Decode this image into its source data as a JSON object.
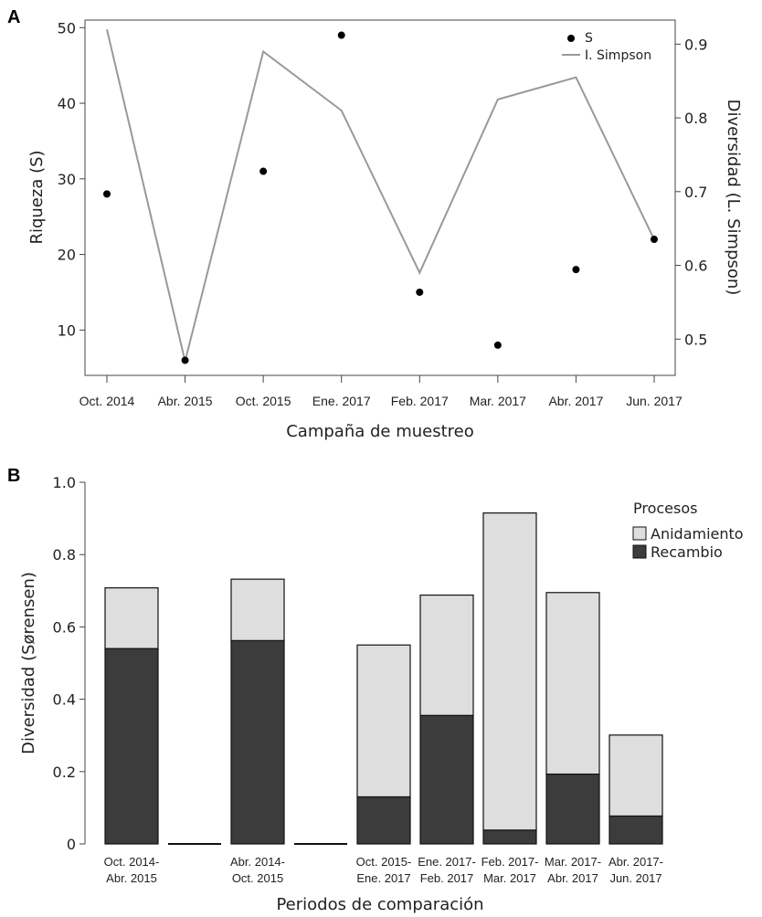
{
  "panel_a": {
    "letter": "A",
    "colors": {
      "points": "#000000",
      "line": "#999999"
    },
    "chart_data": {
      "type": "scatter",
      "categories": [
        "Oct. 2014",
        "Abr. 2015",
        "Oct. 2015",
        "Ene. 2017",
        "Feb. 2017",
        "Mar. 2017",
        "Abr. 2017",
        "Jun. 2017"
      ],
      "series": [
        {
          "name": "S",
          "axis": "left",
          "type": "scatter",
          "values": [
            28,
            6,
            31,
            49,
            15,
            8,
            18,
            22
          ]
        },
        {
          "name": "I. Simpson",
          "axis": "right",
          "type": "line",
          "values": [
            0.92,
            0.47,
            0.89,
            0.81,
            0.59,
            0.825,
            0.855,
            0.635
          ]
        }
      ],
      "title": "",
      "xlabel": "Campaña de muestreo",
      "ylabel": "Riqueza (S)",
      "y2label": "Diversidad (L. Simpson)",
      "ylim": [
        4,
        51
      ],
      "y2lim": [
        0.4508,
        0.9326
      ],
      "yticks": [
        10,
        20,
        30,
        40,
        50
      ],
      "y2ticks": [
        0.5,
        0.6,
        0.7,
        0.8,
        0.9
      ],
      "ytick_labels": [
        "10",
        "20",
        "30",
        "40",
        "50"
      ],
      "y2tick_labels": [
        "0.5",
        "0.6",
        "0.7",
        "0.8",
        "0.9"
      ],
      "grid": false,
      "legend": "top-right"
    }
  },
  "panel_b": {
    "letter": "B",
    "colors": {
      "Anidamiento": "#dedede",
      "Recambio": "#3c3c3c",
      "outline": "#111111"
    },
    "chart_data": {
      "type": "bar",
      "stacked": true,
      "categories": [
        [
          "Oct. 2014-",
          "Abr. 2015"
        ],
        [
          "",
          ""
        ],
        [
          "Abr. 2014-",
          "Oct. 2015"
        ],
        [
          "",
          ""
        ],
        [
          "Oct. 2015-",
          "Ene. 2017"
        ],
        [
          "Ene. 2017-",
          "Feb. 2017"
        ],
        [
          "Feb. 2017-",
          "Mar. 2017"
        ],
        [
          "Mar. 2017-",
          "Abr. 2017"
        ],
        [
          "Abr. 2017-",
          "Jun. 2017"
        ]
      ],
      "series": [
        {
          "name": "Recambio",
          "values": [
            0.54,
            0,
            0.562,
            0,
            0.13,
            0.355,
            0.038,
            0.193,
            0.077
          ]
        },
        {
          "name": "Anidamiento",
          "values": [
            0.168,
            0,
            0.17,
            0,
            0.42,
            0.333,
            0.877,
            0.502,
            0.224
          ]
        }
      ],
      "title": "",
      "xlabel": "Periodos de comparación",
      "ylabel": "Diversidad (Sørensen)",
      "ylim": [
        0,
        1.0
      ],
      "yticks": [
        0,
        0.2,
        0.4,
        0.6,
        0.8,
        1.0
      ],
      "ytick_labels": [
        "0",
        "0.2",
        "0.4",
        "0.6",
        "0.8",
        "1.0"
      ],
      "grid": false,
      "legend_title": "Procesos",
      "legend": "top-right"
    }
  }
}
